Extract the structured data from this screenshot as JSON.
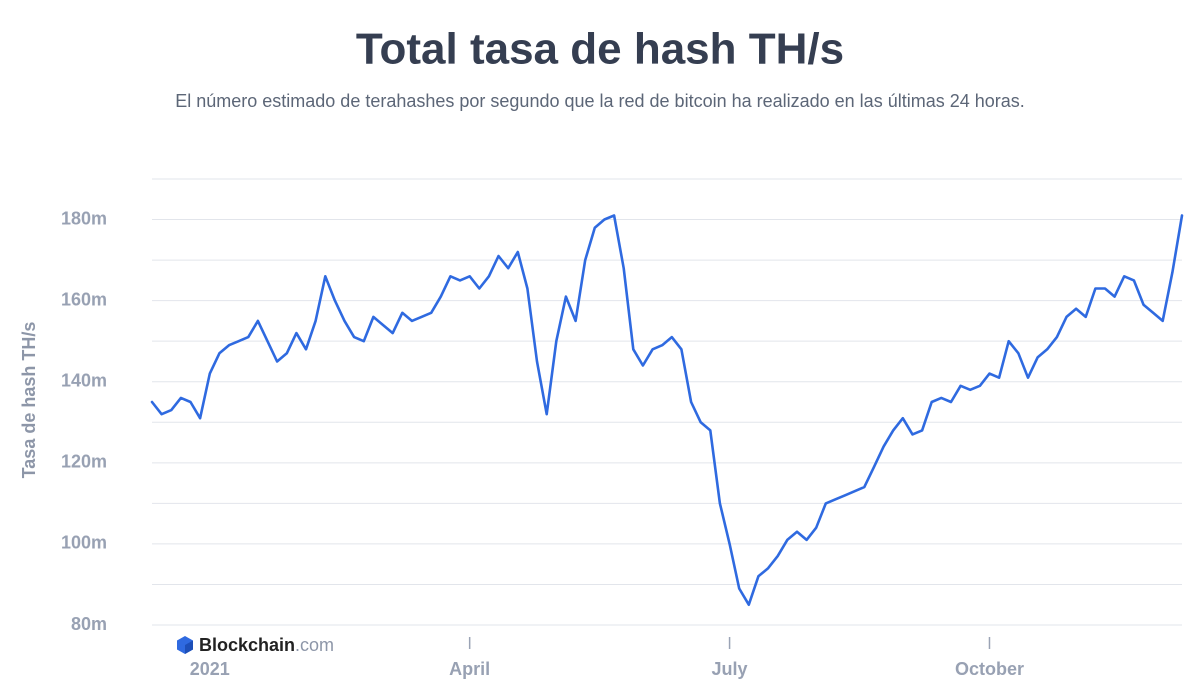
{
  "chart_data": {
    "type": "line",
    "title": "Total tasa de hash TH/s",
    "subtitle": "El número estimado de terahashes por segundo que la red de bitcoin ha realizado en las últimas 24 horas.",
    "y_label": "Tasa de hash TH/s",
    "watermark_brand": "Blockchain",
    "watermark_suffix": ".com",
    "color": "#2f6ae0",
    "grid": true,
    "categories": [
      null,
      null,
      null,
      null,
      null,
      null,
      "2021",
      null,
      null,
      null,
      null,
      null,
      null,
      null,
      null,
      null,
      null,
      null,
      null,
      null,
      null,
      null,
      null,
      null,
      null,
      null,
      null,
      null,
      null,
      null,
      null,
      null,
      null,
      "April",
      null,
      null,
      null,
      null,
      null,
      null,
      null,
      null,
      null,
      null,
      null,
      null,
      null,
      null,
      null,
      null,
      null,
      null,
      null,
      null,
      null,
      null,
      null,
      null,
      null,
      null,
      "July",
      null,
      null,
      null,
      null,
      null,
      null,
      null,
      null,
      null,
      null,
      null,
      null,
      null,
      null,
      null,
      null,
      null,
      null,
      null,
      null,
      null,
      null,
      null,
      null,
      null,
      null,
      "October",
      null,
      null,
      null,
      null,
      null,
      null,
      null,
      null,
      null,
      null,
      null,
      null,
      null,
      null,
      null,
      null,
      null,
      null,
      null,
      null
    ],
    "values": [
      135,
      132,
      133,
      136,
      135,
      131,
      142,
      147,
      149,
      150,
      151,
      155,
      150,
      145,
      147,
      152,
      148,
      155,
      166,
      160,
      155,
      151,
      150,
      156,
      154,
      152,
      157,
      155,
      156,
      157,
      161,
      166,
      165,
      166,
      163,
      166,
      171,
      168,
      172,
      163,
      145,
      132,
      150,
      161,
      155,
      170,
      178,
      180,
      181,
      168,
      148,
      144,
      148,
      149,
      151,
      148,
      135,
      130,
      128,
      110,
      100,
      89,
      85,
      92,
      94,
      97,
      101,
      103,
      101,
      104,
      110,
      111,
      112,
      113,
      114,
      119,
      124,
      128,
      131,
      127,
      128,
      135,
      136,
      135,
      139,
      138,
      139,
      142,
      141,
      150,
      147,
      141,
      146,
      148,
      151,
      156,
      158,
      156,
      163,
      163,
      161,
      166,
      165,
      159,
      157,
      155,
      167,
      181
    ],
    "ylim": [
      80,
      190
    ],
    "yticks": [
      {
        "value": 80,
        "label": "80m"
      },
      {
        "value": 100,
        "label": "100m"
      },
      {
        "value": 120,
        "label": "120m"
      },
      {
        "value": 140,
        "label": "140m"
      },
      {
        "value": 160,
        "label": "160m"
      },
      {
        "value": 180,
        "label": "180m"
      }
    ],
    "y_minor_ticks": [
      90,
      110,
      130,
      150,
      170,
      190
    ]
  }
}
